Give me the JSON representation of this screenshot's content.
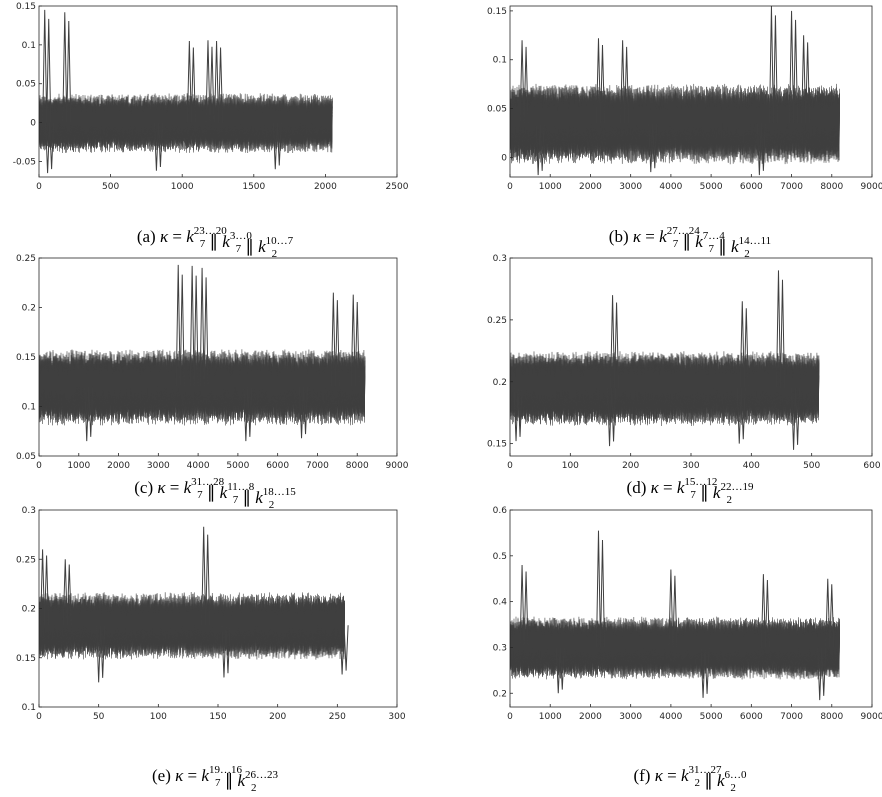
{
  "colors": {
    "trace": "#404040",
    "axis": "#262626",
    "background": "#ffffff"
  },
  "chart_data": [
    {
      "id": "a",
      "type": "line",
      "caption": {
        "prefix": "(a) ",
        "parts": [
          [
            "k",
            "7",
            "23…20"
          ],
          [
            "k",
            "7",
            "3…0"
          ],
          [
            "k",
            "2",
            "10…7"
          ]
        ]
      },
      "xlim": [
        0,
        2500
      ],
      "ylim": [
        -0.07,
        0.15
      ],
      "xticks": [
        0,
        500,
        1000,
        1500,
        2000,
        2500
      ],
      "xtick_labels": [
        "0",
        "500",
        "1000",
        "1500",
        "2000",
        "2500"
      ],
      "yticks": [
        -0.05,
        0,
        0.05,
        0.1,
        0.15
      ],
      "ytick_labels": [
        "-0.05",
        "0",
        "0.05",
        "0.1",
        "0.15"
      ],
      "series_x_range": [
        0,
        2048
      ],
      "band": {
        "center": 0.0,
        "halfwidth": 0.028
      },
      "spikes_high": [
        [
          40,
          0.145
        ],
        [
          180,
          0.142
        ],
        [
          1050,
          0.105
        ],
        [
          1180,
          0.106
        ],
        [
          1240,
          0.105
        ]
      ],
      "spikes_low": [
        [
          60,
          -0.065
        ],
        [
          820,
          -0.062
        ],
        [
          1650,
          -0.06
        ]
      ]
    },
    {
      "id": "b",
      "type": "line",
      "caption": {
        "prefix": "(b) ",
        "parts": [
          [
            "k",
            "7",
            "27…24"
          ],
          [
            "k",
            "7",
            "7…4"
          ],
          [
            "k",
            "2",
            "14…11"
          ]
        ]
      },
      "xlim": [
        0,
        9000
      ],
      "ylim": [
        -0.02,
        0.155
      ],
      "xticks": [
        0,
        1000,
        2000,
        3000,
        4000,
        5000,
        6000,
        7000,
        8000,
        9000
      ],
      "xtick_labels": [
        "0",
        "1000",
        "2000",
        "3000",
        "4000",
        "5000",
        "6000",
        "7000",
        "8000",
        "9000"
      ],
      "yticks": [
        0,
        0.05,
        0.1,
        0.15
      ],
      "ytick_labels": [
        "0",
        "0.05",
        "0.1",
        "0.15"
      ],
      "series_x_range": [
        0,
        8192
      ],
      "band": {
        "center": 0.035,
        "halfwidth": 0.03
      },
      "spikes_high": [
        [
          300,
          0.12
        ],
        [
          2200,
          0.122
        ],
        [
          2800,
          0.12
        ],
        [
          6500,
          0.155
        ],
        [
          7000,
          0.15
        ],
        [
          7300,
          0.125
        ]
      ],
      "spikes_low": [
        [
          700,
          -0.018
        ],
        [
          3500,
          -0.015
        ],
        [
          6200,
          -0.018
        ]
      ]
    },
    {
      "id": "c",
      "type": "line",
      "caption": {
        "prefix": "(c) ",
        "parts": [
          [
            "k",
            "7",
            "31…28"
          ],
          [
            "k",
            "7",
            "11…8"
          ],
          [
            "k",
            "2",
            "18…15"
          ]
        ]
      },
      "xlim": [
        0,
        9000
      ],
      "ylim": [
        0.05,
        0.25
      ],
      "xticks": [
        0,
        1000,
        2000,
        3000,
        4000,
        5000,
        6000,
        7000,
        8000,
        9000
      ],
      "xtick_labels": [
        "0",
        "1000",
        "2000",
        "3000",
        "4000",
        "5000",
        "6000",
        "7000",
        "8000",
        "9000"
      ],
      "yticks": [
        0.05,
        0.1,
        0.15,
        0.2,
        0.25
      ],
      "ytick_labels": [
        "0.05",
        "0.1",
        "0.15",
        "0.2",
        "0.25"
      ],
      "series_x_range": [
        0,
        8192
      ],
      "band": {
        "center": 0.12,
        "halfwidth": 0.028
      },
      "spikes_high": [
        [
          3500,
          0.243
        ],
        [
          3850,
          0.242
        ],
        [
          4100,
          0.24
        ],
        [
          7400,
          0.215
        ],
        [
          7900,
          0.213
        ]
      ],
      "spikes_low": [
        [
          1200,
          0.065
        ],
        [
          5200,
          0.065
        ],
        [
          6600,
          0.068
        ]
      ]
    },
    {
      "id": "d",
      "type": "line",
      "caption": {
        "prefix": "(d) ",
        "parts": [
          [
            "k",
            "7",
            "15…12"
          ],
          [
            "k",
            "2",
            "22…19"
          ]
        ]
      },
      "xlim": [
        0,
        600
      ],
      "ylim": [
        0.14,
        0.3
      ],
      "xticks": [
        0,
        100,
        200,
        300,
        400,
        500,
        600
      ],
      "xtick_labels": [
        "0",
        "100",
        "200",
        "300",
        "400",
        "500",
        "600"
      ],
      "yticks": [
        0.15,
        0.2,
        0.25,
        0.3
      ],
      "ytick_labels": [
        "0.15",
        "0.2",
        "0.25",
        "0.3"
      ],
      "series_x_range": [
        0,
        512
      ],
      "band": {
        "center": 0.195,
        "halfwidth": 0.022
      },
      "spikes_high": [
        [
          170,
          0.27
        ],
        [
          385,
          0.265
        ],
        [
          445,
          0.29
        ]
      ],
      "spikes_low": [
        [
          10,
          0.152
        ],
        [
          165,
          0.148
        ],
        [
          380,
          0.15
        ],
        [
          470,
          0.145
        ]
      ]
    },
    {
      "id": "e",
      "type": "line",
      "caption": {
        "prefix": "(e) ",
        "parts": [
          [
            "k",
            "7",
            "19…16"
          ],
          [
            "k",
            "2",
            "26…23"
          ]
        ]
      },
      "xlim": [
        0,
        300
      ],
      "ylim": [
        0.1,
        0.3
      ],
      "xticks": [
        0,
        50,
        100,
        150,
        200,
        250,
        300
      ],
      "xtick_labels": [
        "0",
        "50",
        "100",
        "150",
        "200",
        "250",
        "300"
      ],
      "yticks": [
        0.1,
        0.15,
        0.2,
        0.25,
        0.3
      ],
      "ytick_labels": [
        "0.1",
        "0.15",
        "0.2",
        "0.25",
        "0.3"
      ],
      "series_x_range": [
        0,
        256
      ],
      "band": {
        "center": 0.183,
        "halfwidth": 0.025
      },
      "spikes_high": [
        [
          3,
          0.26
        ],
        [
          22,
          0.25
        ],
        [
          138,
          0.283
        ]
      ],
      "spikes_low": [
        [
          50,
          0.125
        ],
        [
          155,
          0.13
        ],
        [
          254,
          0.133
        ]
      ]
    },
    {
      "id": "f",
      "type": "line",
      "caption": {
        "prefix": "(f) ",
        "parts": [
          [
            "k",
            "2",
            "31…27"
          ],
          [
            "k",
            "2",
            "6…0"
          ]
        ]
      },
      "xlim": [
        0,
        9000
      ],
      "ylim": [
        0.17,
        0.6
      ],
      "xticks": [
        0,
        1000,
        2000,
        3000,
        4000,
        5000,
        6000,
        7000,
        8000,
        9000
      ],
      "xtick_labels": [
        "0",
        "1000",
        "2000",
        "3000",
        "4000",
        "5000",
        "6000",
        "7000",
        "8000",
        "9000"
      ],
      "yticks": [
        0.2,
        0.3,
        0.4,
        0.5,
        0.6
      ],
      "ytick_labels": [
        "0.2",
        "0.3",
        "0.4",
        "0.5",
        "0.6"
      ],
      "series_x_range": [
        0,
        8192
      ],
      "band": {
        "center": 0.3,
        "halfwidth": 0.05
      },
      "spikes_high": [
        [
          300,
          0.48
        ],
        [
          2200,
          0.555
        ],
        [
          4000,
          0.47
        ],
        [
          6300,
          0.46
        ],
        [
          7900,
          0.45
        ]
      ],
      "spikes_low": [
        [
          1200,
          0.2
        ],
        [
          4800,
          0.19
        ],
        [
          7700,
          0.185
        ]
      ]
    }
  ]
}
